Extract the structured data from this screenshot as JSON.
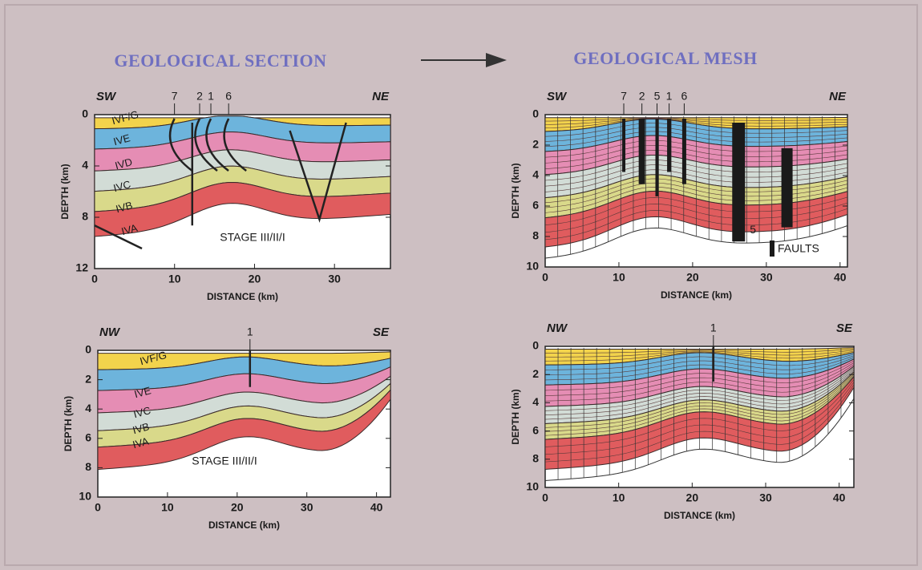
{
  "header": {
    "left_title": "GEOLOGICAL SECTION",
    "right_title": "GEOLOGICAL MESH"
  },
  "panels": [
    {
      "left_label": "SW",
      "right_label": "NE",
      "fault_labels": [
        "7",
        "2",
        "1",
        "6"
      ],
      "layer_labels": [
        "IVF/G",
        "IVE",
        "IVD",
        "IVC",
        "IVB",
        "IVA"
      ],
      "stage_label": "STAGE III/II/I",
      "y_label": "DEPTH (km)",
      "x_label": "DISTANCE (km)",
      "xlim": [
        0,
        37
      ],
      "ylim": [
        0,
        12
      ],
      "xticks": [
        0,
        10,
        20,
        30
      ],
      "yticks": [
        0,
        4,
        8,
        12
      ]
    },
    {
      "left_label": "SW",
      "right_label": "NE",
      "fault_labels": [
        "7",
        "2",
        "5",
        "1",
        "6"
      ],
      "fault_marker_label": "5",
      "legend_label": "FAULTS",
      "y_label": "DEPTH (km)",
      "x_label": "DISTANCE (km)",
      "xlim": [
        0,
        41
      ],
      "ylim": [
        0,
        10
      ],
      "xticks": [
        0,
        10,
        20,
        30,
        40
      ],
      "yticks": [
        0,
        2,
        4,
        6,
        8,
        10
      ]
    },
    {
      "left_label": "NW",
      "right_label": "SE",
      "fault_labels": [
        "1"
      ],
      "layer_labels": [
        "IVF/G",
        "IVE",
        "IVC",
        "IVB",
        "IVA"
      ],
      "stage_label": "STAGE III/II/I",
      "y_label": "DEPTH (km)",
      "x_label": "DISTANCE (km)",
      "xlim": [
        0,
        42
      ],
      "ylim": [
        0,
        10
      ],
      "xticks": [
        0,
        10,
        20,
        30,
        40
      ],
      "yticks": [
        0,
        2,
        4,
        6,
        8,
        10
      ]
    },
    {
      "left_label": "NW",
      "right_label": "SE",
      "fault_labels": [
        "1"
      ],
      "y_label": "DEPTH (km)",
      "x_label": "DISTANCE (km)",
      "xlim": [
        0,
        42
      ],
      "ylim": [
        0,
        10
      ],
      "xticks": [
        0,
        10,
        20,
        30,
        40
      ],
      "yticks": [
        0,
        2,
        4,
        6,
        8,
        10
      ]
    }
  ]
}
